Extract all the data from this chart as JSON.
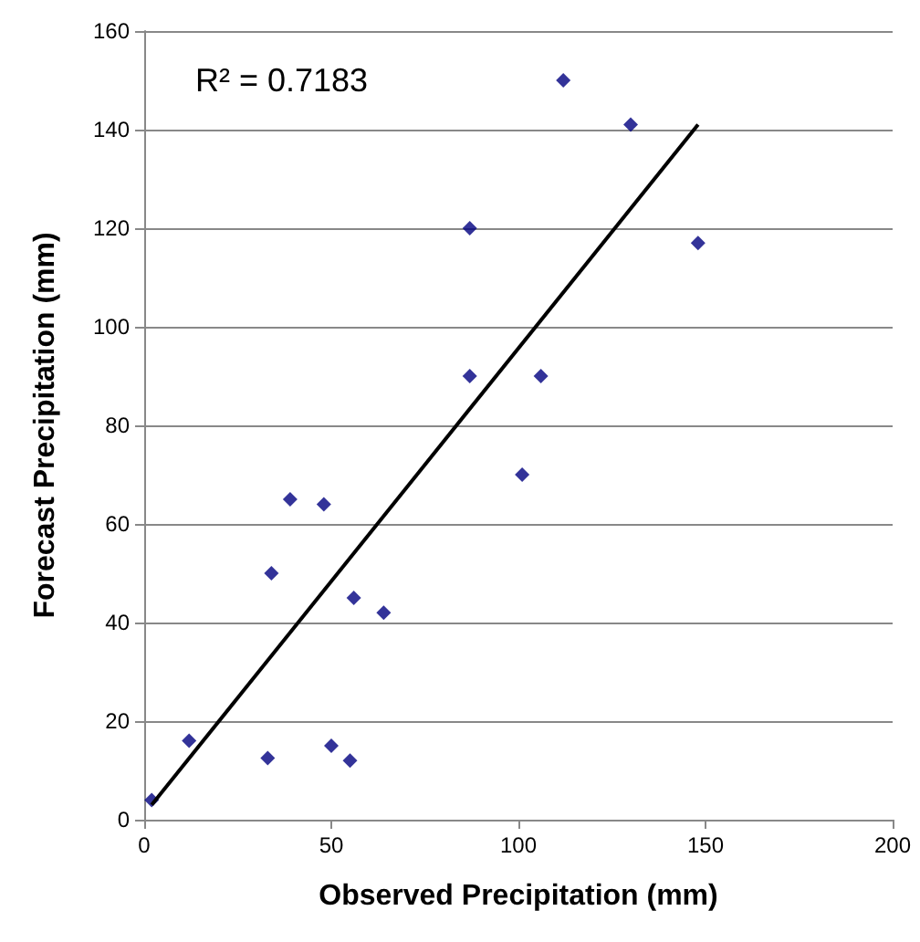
{
  "chart_data": {
    "type": "scatter",
    "xlabel": "Observed Precipitation (mm)",
    "ylabel": "Forecast Precipitation (mm)",
    "annotations": [
      "R² = 0.7183"
    ],
    "xlim": [
      0,
      200
    ],
    "xticks": [
      0,
      50,
      100,
      150,
      200
    ],
    "ylim": [
      0,
      160
    ],
    "yticks": [
      0,
      20,
      40,
      60,
      80,
      100,
      120,
      140,
      160
    ],
    "grid": "y",
    "marker": "diamond",
    "series": [
      {
        "color": "#000080",
        "x": [
          2,
          12,
          33,
          34,
          39,
          48,
          50,
          55,
          56,
          64,
          87,
          87,
          101,
          106,
          112,
          130,
          148
        ],
        "values": [
          4,
          16,
          12.5,
          50,
          65,
          64,
          15,
          12,
          45,
          42,
          120,
          90,
          70,
          90,
          150,
          141,
          117
        ]
      },
      {
        "type": "line",
        "color": "#000000",
        "x": [
          2,
          148
        ],
        "values": [
          3,
          141
        ],
        "marker": "none",
        "line_style": "solid"
      }
    ]
  }
}
